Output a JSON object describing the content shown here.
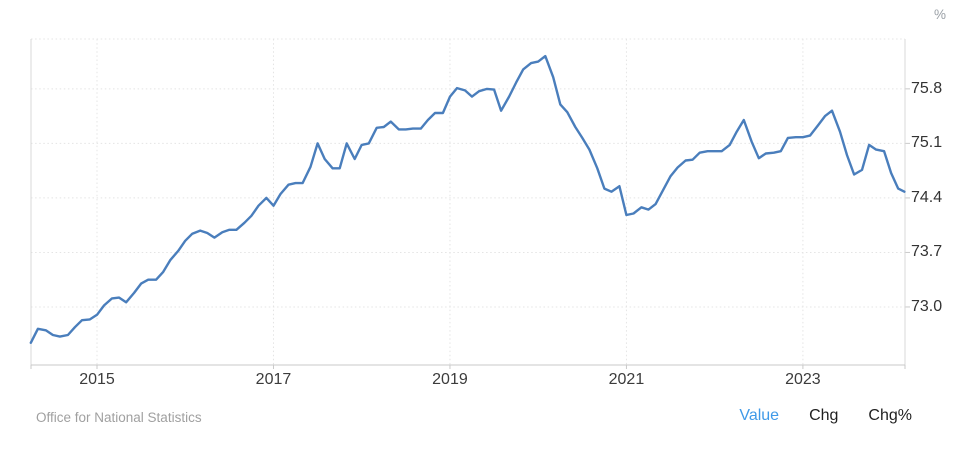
{
  "chart": {
    "unit_label": "%",
    "source": "Office for National Statistics",
    "footer_tabs": [
      {
        "label": "Value",
        "active": true
      },
      {
        "label": "Chg",
        "active": false
      },
      {
        "label": "Chg%",
        "active": false
      }
    ]
  },
  "colors": {
    "line": "#4a7ebc",
    "active_tab_blue": "#3f9ae8",
    "grid": "#e4e4e4",
    "axis_text": "#333333",
    "muted_text": "#a0a0a0"
  },
  "chart_data": {
    "type": "line",
    "title": "",
    "ylabel": "%",
    "xlabel": "",
    "legend": "none",
    "grid": "dotted",
    "series_name": "Value",
    "x_ticks": [
      2015,
      2017,
      2019,
      2021,
      2023
    ],
    "y_ticks": [
      75.8,
      75.1,
      74.4,
      73.7,
      73.0
    ],
    "x_range": [
      2014.252,
      2024.157
    ],
    "y_range": [
      72.255,
      76.44
    ],
    "points": [
      [
        2014.25,
        72.54
      ],
      [
        2014.33,
        72.72
      ],
      [
        2014.42,
        72.7
      ],
      [
        2014.5,
        72.64
      ],
      [
        2014.58,
        72.62
      ],
      [
        2014.67,
        72.64
      ],
      [
        2014.75,
        72.74
      ],
      [
        2014.83,
        72.83
      ],
      [
        2014.92,
        72.84
      ],
      [
        2015.0,
        72.9
      ],
      [
        2015.08,
        73.02
      ],
      [
        2015.17,
        73.11
      ],
      [
        2015.25,
        73.12
      ],
      [
        2015.33,
        73.06
      ],
      [
        2015.42,
        73.18
      ],
      [
        2015.5,
        73.3
      ],
      [
        2015.58,
        73.35
      ],
      [
        2015.67,
        73.35
      ],
      [
        2015.75,
        73.45
      ],
      [
        2015.83,
        73.6
      ],
      [
        2015.92,
        73.72
      ],
      [
        2016.0,
        73.85
      ],
      [
        2016.08,
        73.94
      ],
      [
        2016.17,
        73.98
      ],
      [
        2016.25,
        73.95
      ],
      [
        2016.33,
        73.89
      ],
      [
        2016.42,
        73.96
      ],
      [
        2016.5,
        73.99
      ],
      [
        2016.58,
        73.99
      ],
      [
        2016.67,
        74.08
      ],
      [
        2016.75,
        74.17
      ],
      [
        2016.83,
        74.3
      ],
      [
        2016.92,
        74.4
      ],
      [
        2017.0,
        74.3
      ],
      [
        2017.08,
        74.45
      ],
      [
        2017.17,
        74.57
      ],
      [
        2017.25,
        74.59
      ],
      [
        2017.33,
        74.59
      ],
      [
        2017.42,
        74.8
      ],
      [
        2017.5,
        75.1
      ],
      [
        2017.58,
        74.9
      ],
      [
        2017.67,
        74.78
      ],
      [
        2017.75,
        74.78
      ],
      [
        2017.83,
        75.1
      ],
      [
        2017.92,
        74.9
      ],
      [
        2018.0,
        75.08
      ],
      [
        2018.08,
        75.1
      ],
      [
        2018.17,
        75.3
      ],
      [
        2018.25,
        75.31
      ],
      [
        2018.33,
        75.38
      ],
      [
        2018.42,
        75.28
      ],
      [
        2018.5,
        75.28
      ],
      [
        2018.58,
        75.29
      ],
      [
        2018.67,
        75.29
      ],
      [
        2018.75,
        75.4
      ],
      [
        2018.83,
        75.49
      ],
      [
        2018.92,
        75.49
      ],
      [
        2019.0,
        75.7
      ],
      [
        2019.08,
        75.81
      ],
      [
        2019.17,
        75.78
      ],
      [
        2019.25,
        75.7
      ],
      [
        2019.33,
        75.77
      ],
      [
        2019.42,
        75.8
      ],
      [
        2019.5,
        75.79
      ],
      [
        2019.58,
        75.52
      ],
      [
        2019.67,
        75.7
      ],
      [
        2019.75,
        75.88
      ],
      [
        2019.83,
        76.05
      ],
      [
        2019.92,
        76.13
      ],
      [
        2020.0,
        76.15
      ],
      [
        2020.08,
        76.22
      ],
      [
        2020.17,
        75.95
      ],
      [
        2020.25,
        75.6
      ],
      [
        2020.33,
        75.5
      ],
      [
        2020.42,
        75.31
      ],
      [
        2020.5,
        75.17
      ],
      [
        2020.58,
        75.02
      ],
      [
        2020.67,
        74.78
      ],
      [
        2020.75,
        74.52
      ],
      [
        2020.83,
        74.48
      ],
      [
        2020.92,
        74.55
      ],
      [
        2021.0,
        74.18
      ],
      [
        2021.08,
        74.2
      ],
      [
        2021.17,
        74.28
      ],
      [
        2021.25,
        74.25
      ],
      [
        2021.33,
        74.32
      ],
      [
        2021.42,
        74.51
      ],
      [
        2021.5,
        74.68
      ],
      [
        2021.58,
        74.79
      ],
      [
        2021.67,
        74.88
      ],
      [
        2021.75,
        74.89
      ],
      [
        2021.83,
        74.98
      ],
      [
        2021.92,
        75.0
      ],
      [
        2022.0,
        75.0
      ],
      [
        2022.08,
        75.0
      ],
      [
        2022.17,
        75.08
      ],
      [
        2022.25,
        75.25
      ],
      [
        2022.33,
        75.4
      ],
      [
        2022.42,
        75.12
      ],
      [
        2022.5,
        74.91
      ],
      [
        2022.58,
        74.97
      ],
      [
        2022.67,
        74.98
      ],
      [
        2022.75,
        75.0
      ],
      [
        2022.83,
        75.17
      ],
      [
        2022.92,
        75.18
      ],
      [
        2023.0,
        75.18
      ],
      [
        2023.08,
        75.2
      ],
      [
        2023.17,
        75.33
      ],
      [
        2023.25,
        75.45
      ],
      [
        2023.33,
        75.52
      ],
      [
        2023.42,
        75.25
      ],
      [
        2023.5,
        74.95
      ],
      [
        2023.58,
        74.7
      ],
      [
        2023.67,
        74.76
      ],
      [
        2023.75,
        75.08
      ],
      [
        2023.83,
        75.02
      ],
      [
        2023.92,
        75.0
      ],
      [
        2024.0,
        74.72
      ],
      [
        2024.08,
        74.52
      ],
      [
        2024.15,
        74.48
      ]
    ]
  }
}
